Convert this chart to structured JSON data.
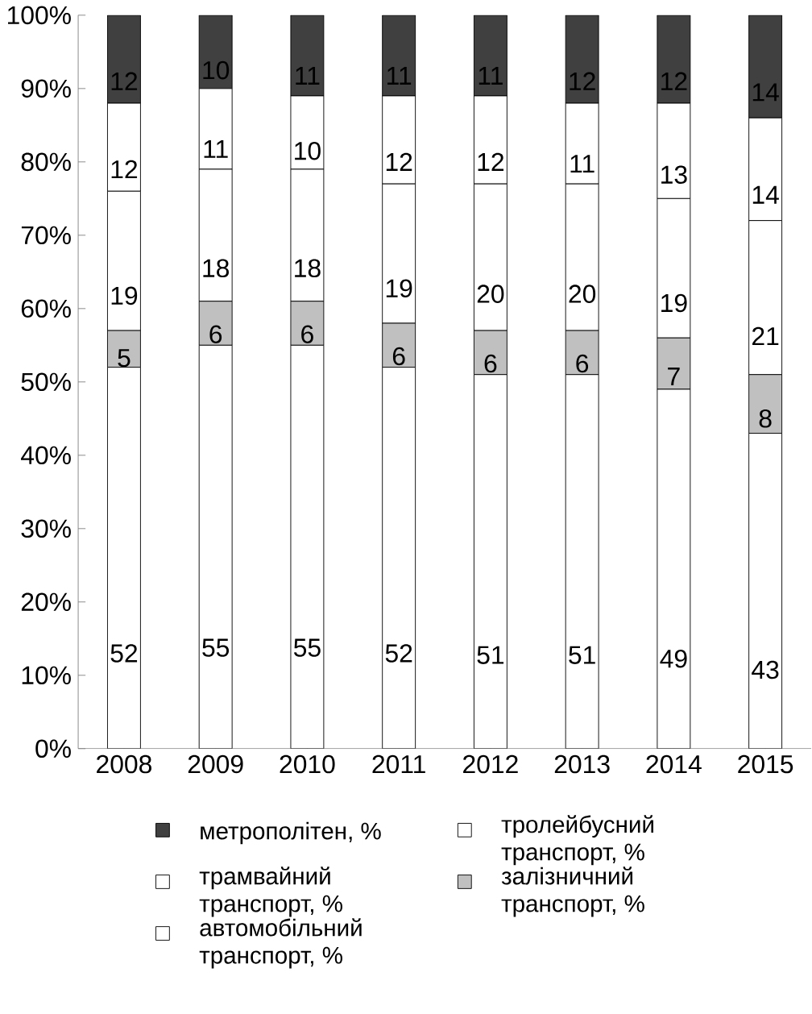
{
  "chart_data": {
    "type": "bar",
    "stacked": true,
    "data_labels": true,
    "legend": "bottom",
    "categories": [
      "2008",
      "2009",
      "2010",
      "2011",
      "2012",
      "2013",
      "2014",
      "2015"
    ],
    "ylim": [
      0,
      100
    ],
    "yticks": [
      {
        "value": 0,
        "label": "0%"
      },
      {
        "value": 10,
        "label": "10%"
      },
      {
        "value": 20,
        "label": "20%"
      },
      {
        "value": 30,
        "label": "30%"
      },
      {
        "value": 40,
        "label": "40%"
      },
      {
        "value": 50,
        "label": "50%"
      },
      {
        "value": 60,
        "label": "60%"
      },
      {
        "value": 70,
        "label": "70%"
      },
      {
        "value": 80,
        "label": "80%"
      },
      {
        "value": 90,
        "label": "90%"
      },
      {
        "value": 100,
        "label": "100%"
      }
    ],
    "series": [
      {
        "name": "автомобільний транспорт, %",
        "color": "#ffffff",
        "values": [
          52,
          55,
          55,
          52,
          51,
          51,
          49,
          43
        ]
      },
      {
        "name": "залізничний транспорт, %",
        "color": "#c0c0c0",
        "values": [
          5,
          6,
          6,
          6,
          6,
          6,
          7,
          8
        ]
      },
      {
        "name": "трамвайний транспорт, %",
        "color": "#ffffff",
        "values": [
          19,
          18,
          18,
          19,
          20,
          20,
          19,
          21
        ]
      },
      {
        "name": "тролейбусний транспорт, %",
        "color": "#ffffff",
        "values": [
          12,
          11,
          10,
          12,
          12,
          11,
          13,
          14
        ]
      },
      {
        "name": "метрополітен, %",
        "color": "#404040",
        "values": [
          12,
          10,
          11,
          11,
          11,
          12,
          12,
          14
        ]
      }
    ]
  }
}
